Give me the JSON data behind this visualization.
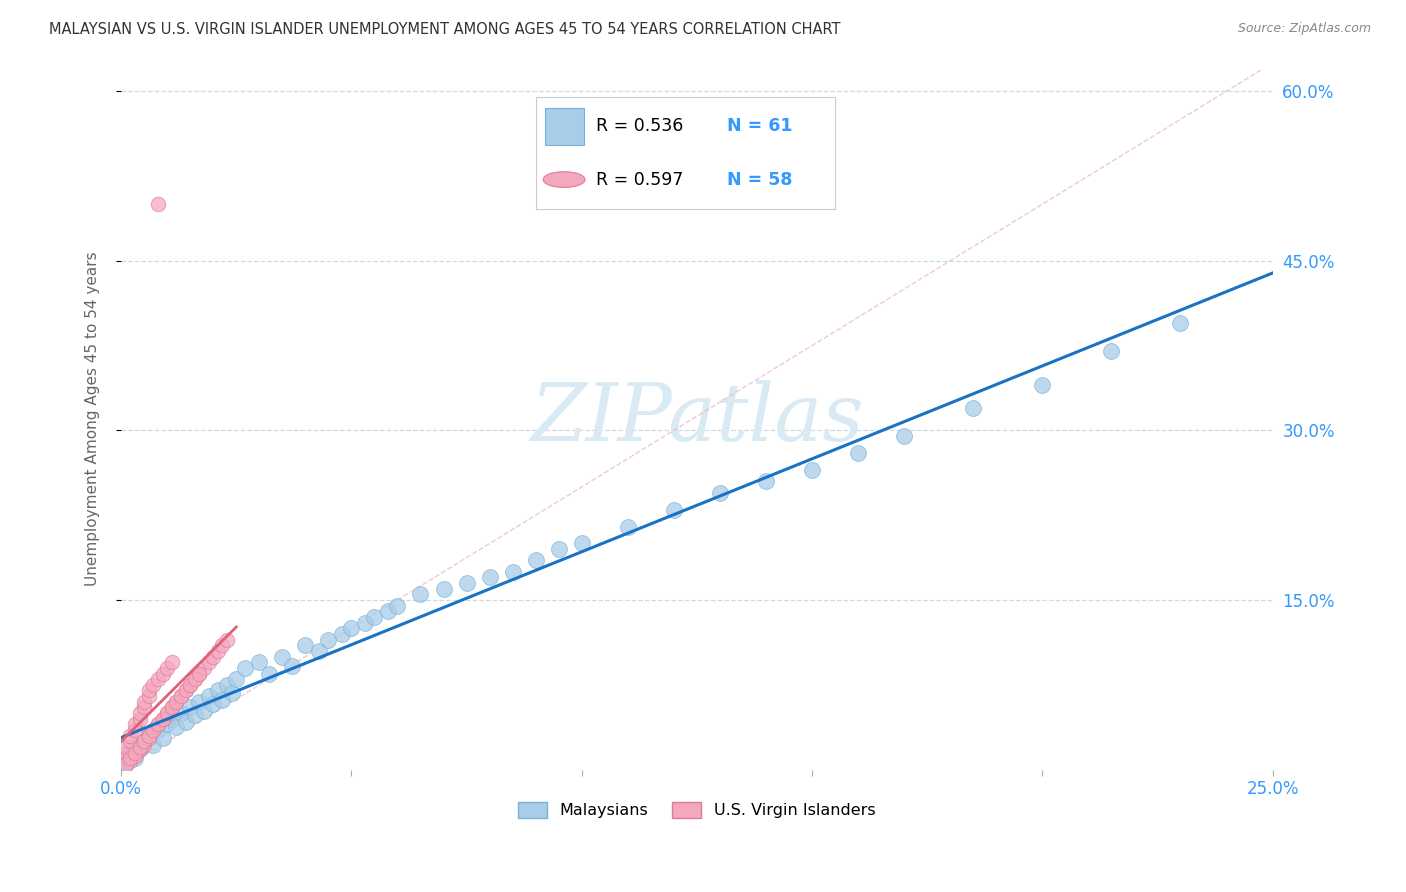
{
  "title": "MALAYSIAN VS U.S. VIRGIN ISLANDER UNEMPLOYMENT AMONG AGES 45 TO 54 YEARS CORRELATION CHART",
  "source": "Source: ZipAtlas.com",
  "ylabel": "Unemployment Among Ages 45 to 54 years",
  "xlim": [
    0,
    0.25
  ],
  "ylim": [
    0,
    0.62
  ],
  "xticks": [
    0.0,
    0.05,
    0.1,
    0.15,
    0.2,
    0.25
  ],
  "xtick_labels_show": [
    "0.0%",
    "",
    "",
    "",
    "",
    "25.0%"
  ],
  "yticks_right": [
    0.15,
    0.3,
    0.45,
    0.6
  ],
  "ytick_labels_right": [
    "15.0%",
    "30.0%",
    "45.0%",
    "60.0%"
  ],
  "r1": 0.536,
  "n1": 61,
  "r2": 0.597,
  "n2": 58,
  "blue_dot_color": "#a8cde8",
  "blue_dot_edge": "#7ab0d4",
  "pink_dot_color": "#f4a8be",
  "pink_dot_edge": "#e07898",
  "blue_line_color": "#1a72c4",
  "pink_line_color": "#e0607a",
  "diag_line_color": "#e8b4c0",
  "watermark": "ZIPatlas",
  "watermark_color": "#daeaf5",
  "grid_color": "#d0d8e0",
  "title_color": "#333333",
  "source_color": "#888888",
  "axis_label_color": "#666666",
  "tick_color": "#3399ff",
  "background_color": "#ffffff",
  "mal_x": [
    0.001,
    0.001,
    0.002,
    0.002,
    0.003,
    0.003,
    0.004,
    0.005,
    0.006,
    0.007,
    0.008,
    0.009,
    0.01,
    0.011,
    0.012,
    0.013,
    0.014,
    0.015,
    0.016,
    0.017,
    0.018,
    0.019,
    0.02,
    0.021,
    0.022,
    0.023,
    0.024,
    0.025,
    0.027,
    0.03,
    0.032,
    0.035,
    0.037,
    0.04,
    0.043,
    0.045,
    0.048,
    0.05,
    0.053,
    0.055,
    0.058,
    0.06,
    0.065,
    0.07,
    0.075,
    0.08,
    0.085,
    0.09,
    0.095,
    0.1,
    0.11,
    0.12,
    0.13,
    0.14,
    0.15,
    0.16,
    0.17,
    0.185,
    0.2,
    0.215,
    0.23
  ],
  "mal_y": [
    0.005,
    0.008,
    0.012,
    0.015,
    0.01,
    0.02,
    0.018,
    0.025,
    0.03,
    0.022,
    0.035,
    0.028,
    0.04,
    0.045,
    0.038,
    0.05,
    0.042,
    0.055,
    0.048,
    0.06,
    0.052,
    0.065,
    0.058,
    0.07,
    0.062,
    0.075,
    0.068,
    0.08,
    0.09,
    0.095,
    0.085,
    0.1,
    0.092,
    0.11,
    0.105,
    0.115,
    0.12,
    0.125,
    0.13,
    0.135,
    0.14,
    0.145,
    0.155,
    0.16,
    0.165,
    0.17,
    0.175,
    0.185,
    0.195,
    0.2,
    0.215,
    0.23,
    0.245,
    0.255,
    0.265,
    0.28,
    0.295,
    0.32,
    0.34,
    0.37,
    0.395
  ],
  "vir_x": [
    0.001,
    0.001,
    0.001,
    0.002,
    0.002,
    0.002,
    0.003,
    0.003,
    0.003,
    0.004,
    0.004,
    0.004,
    0.005,
    0.005,
    0.005,
    0.006,
    0.006,
    0.006,
    0.007,
    0.007,
    0.008,
    0.008,
    0.009,
    0.009,
    0.01,
    0.01,
    0.011,
    0.011,
    0.012,
    0.013,
    0.014,
    0.015,
    0.016,
    0.017,
    0.018,
    0.019,
    0.02,
    0.021,
    0.022,
    0.023,
    0.001,
    0.002,
    0.003,
    0.004,
    0.005,
    0.006,
    0.007,
    0.008,
    0.009,
    0.01,
    0.011,
    0.012,
    0.013,
    0.014,
    0.015,
    0.016,
    0.017,
    0.008
  ],
  "vir_y": [
    0.01,
    0.015,
    0.02,
    0.008,
    0.025,
    0.03,
    0.012,
    0.035,
    0.04,
    0.018,
    0.045,
    0.05,
    0.022,
    0.055,
    0.06,
    0.028,
    0.065,
    0.07,
    0.035,
    0.075,
    0.04,
    0.08,
    0.045,
    0.085,
    0.05,
    0.09,
    0.055,
    0.095,
    0.06,
    0.065,
    0.07,
    0.075,
    0.08,
    0.085,
    0.09,
    0.095,
    0.1,
    0.105,
    0.11,
    0.115,
    0.005,
    0.01,
    0.015,
    0.02,
    0.025,
    0.03,
    0.035,
    0.04,
    0.045,
    0.05,
    0.055,
    0.06,
    0.065,
    0.07,
    0.075,
    0.08,
    0.085,
    0.5
  ]
}
